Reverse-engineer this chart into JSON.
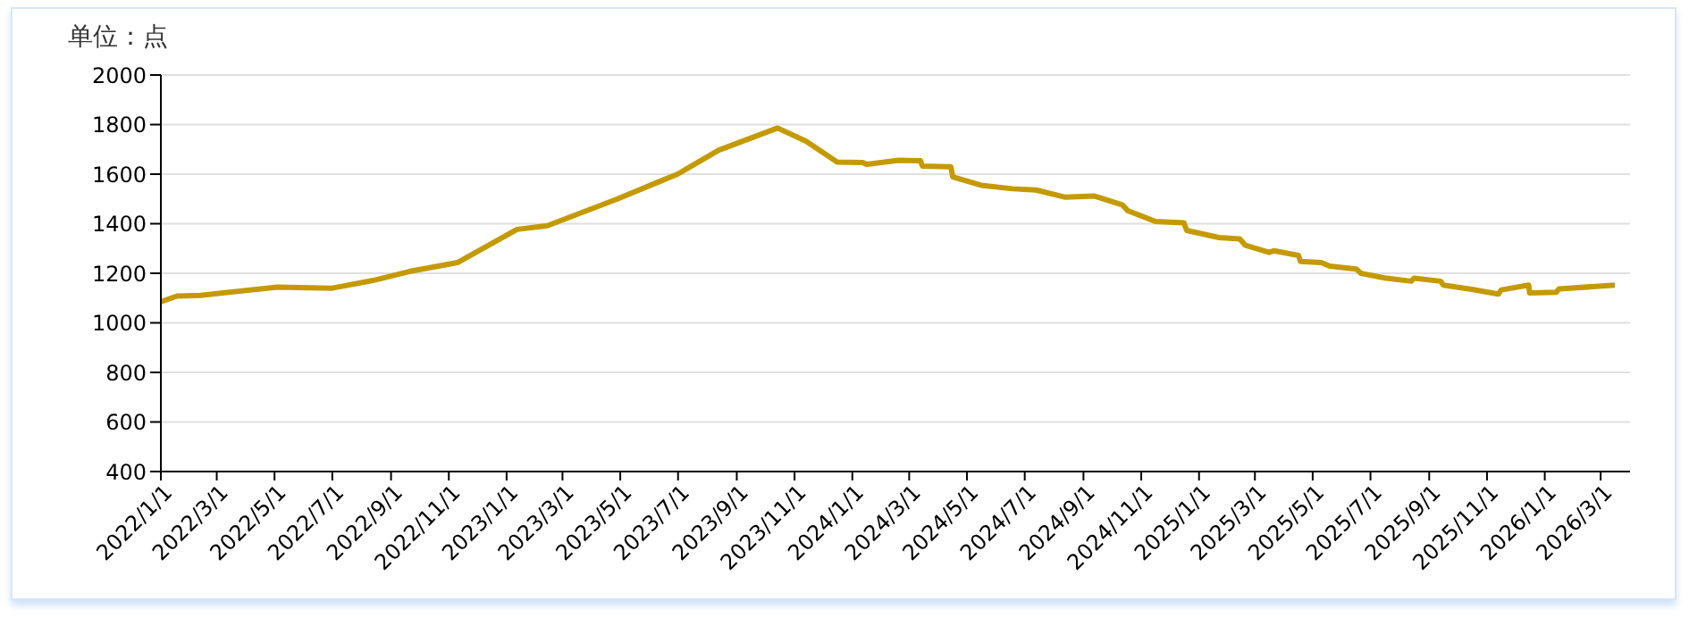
{
  "chart_data": {
    "type": "line",
    "ylabel": "单位：点",
    "x": [
      "2022-01-01",
      "2022-01-18",
      "2022-02-12",
      "2022-05-04",
      "2022-07-01",
      "2022-08-13",
      "2022-09-20",
      "2022-11-10",
      "2023-01-12",
      "2023-02-13",
      "2023-04-28",
      "2023-06-10",
      "2023-07-01",
      "2023-08-13",
      "2023-10-14",
      "2023-11-13",
      "2023-12-16",
      "2024-01-12",
      "2024-01-16",
      "2024-02-19",
      "2024-03-13",
      "2024-03-15",
      "2024-04-14",
      "2024-04-16",
      "2024-05-16",
      "2024-06-18",
      "2024-07-13",
      "2024-08-13",
      "2024-09-12",
      "2024-10-12",
      "2024-10-18",
      "2024-11-16",
      "2024-12-16",
      "2024-12-19",
      "2025-01-22",
      "2025-02-13",
      "2025-02-19",
      "2025-03-16",
      "2025-03-21",
      "2025-04-16",
      "2025-04-18",
      "2025-05-10",
      "2025-05-19",
      "2025-06-16",
      "2025-06-21",
      "2025-07-16",
      "2025-08-13",
      "2025-08-16",
      "2025-09-13",
      "2025-09-16",
      "2025-10-16",
      "2025-11-13",
      "2025-11-16",
      "2025-12-15",
      "2025-12-16",
      "2026-01-13",
      "2026-01-16",
      "2026-03-16"
    ],
    "series": [
      {
        "color": "#c49a00",
        "values": [
          1085,
          1108,
          1111,
          1144,
          1140,
          1171,
          1207,
          1243,
          1377,
          1392,
          1500,
          1568,
          1601,
          1697,
          1786,
          1733,
          1649,
          1647,
          1640,
          1656,
          1654,
          1632,
          1630,
          1589,
          1555,
          1541,
          1536,
          1507,
          1512,
          1476,
          1452,
          1409,
          1404,
          1373,
          1344,
          1339,
          1313,
          1284,
          1291,
          1272,
          1248,
          1243,
          1229,
          1217,
          1200,
          1181,
          1168,
          1180,
          1168,
          1152,
          1135,
          1116,
          1133,
          1152,
          1121,
          1123,
          1137,
          1152
        ]
      }
    ],
    "xlim": [
      "2022-01-01",
      "2026-04-01"
    ],
    "xticks": [
      {
        "value": "2022-01-01",
        "label": "2022/1/1"
      },
      {
        "value": "2022-03-01",
        "label": "2022/3/1"
      },
      {
        "value": "2022-05-01",
        "label": "2022/5/1"
      },
      {
        "value": "2022-07-01",
        "label": "2022/7/1"
      },
      {
        "value": "2022-09-01",
        "label": "2022/9/1"
      },
      {
        "value": "2022-11-01",
        "label": "2022/11/1"
      },
      {
        "value": "2023-01-01",
        "label": "2023/1/1"
      },
      {
        "value": "2023-03-01",
        "label": "2023/3/1"
      },
      {
        "value": "2023-05-01",
        "label": "2023/5/1"
      },
      {
        "value": "2023-07-01",
        "label": "2023/7/1"
      },
      {
        "value": "2023-09-01",
        "label": "2023/9/1"
      },
      {
        "value": "2023-11-01",
        "label": "2023/11/1"
      },
      {
        "value": "2024-01-01",
        "label": "2024/1/1"
      },
      {
        "value": "2024-03-01",
        "label": "2024/3/1"
      },
      {
        "value": "2024-05-01",
        "label": "2024/5/1"
      },
      {
        "value": "2024-07-01",
        "label": "2024/7/1"
      },
      {
        "value": "2024-09-01",
        "label": "2024/9/1"
      },
      {
        "value": "2024-11-01",
        "label": "2024/11/1"
      },
      {
        "value": "2025-01-01",
        "label": "2025/1/1"
      },
      {
        "value": "2025-03-01",
        "label": "2025/3/1"
      },
      {
        "value": "2025-05-01",
        "label": "2025/5/1"
      },
      {
        "value": "2025-07-01",
        "label": "2025/7/1"
      },
      {
        "value": "2025-09-01",
        "label": "2025/9/1"
      },
      {
        "value": "2025-11-01",
        "label": "2025/11/1"
      },
      {
        "value": "2026-01-01",
        "label": "2026/1/1"
      },
      {
        "value": "2026-03-01",
        "label": "2026/3/1"
      }
    ],
    "ylim": [
      400,
      2000
    ],
    "yticks": [
      400,
      600,
      800,
      1000,
      1200,
      1400,
      1600,
      1800,
      2000
    ],
    "grid": "y",
    "marker": "none",
    "line_style": "solid",
    "legend": false
  }
}
